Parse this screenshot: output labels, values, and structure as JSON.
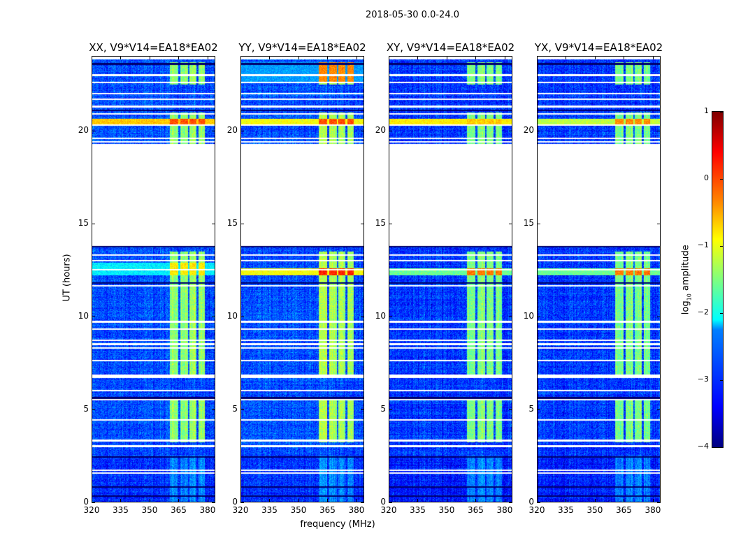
{
  "figure_title": "2018-05-30 0.0-24.0",
  "chart_data": {
    "type": "heatmap",
    "title": "2018-05-30 0.0-24.0",
    "xlabel": "frequency (MHz)",
    "ylabel": "UT (hours)",
    "xlim": [
      320,
      384
    ],
    "ylim": [
      0,
      24
    ],
    "xticks": [
      "320",
      "335",
      "350",
      "365",
      "380"
    ],
    "xtick_values": [
      320,
      335,
      350,
      365,
      380
    ],
    "yticks": [
      "0",
      "5",
      "10",
      "15",
      "20"
    ],
    "ytick_values": [
      0,
      5,
      10,
      15,
      20
    ],
    "data_end_hour": 23.85,
    "gap_hours": [
      13.8,
      19.3
    ],
    "blank_rows_hours": [
      1.55,
      1.7,
      3.0,
      3.3,
      4.4,
      5.5,
      6.0,
      6.7,
      6.8,
      7.6,
      8.3,
      8.5,
      8.7,
      9.3,
      9.7,
      11.65,
      12.5,
      13.0,
      13.3,
      19.4,
      19.6,
      20.3,
      20.9,
      21.3,
      21.7,
      22.0,
      22.6,
      23.0
    ],
    "dark_rows_hours": [
      0.3,
      0.8,
      2.4,
      5.6,
      11.8,
      13.75,
      21.1,
      23.6
    ],
    "rfi_columns_mhz": [
      [
        360.5,
        365
      ],
      [
        366,
        370
      ],
      [
        371,
        374.5
      ],
      [
        375.5,
        379
      ]
    ],
    "rfi_active_hours": [
      [
        3.2,
        5.5
      ],
      [
        6.7,
        13.5
      ],
      [
        19.3,
        21.0
      ],
      [
        22.5,
        23.7
      ]
    ],
    "colorbar": {
      "label_prefix": "log",
      "label_sub": "10",
      "label_suffix": " amplitude",
      "range": [
        -4,
        1
      ],
      "ticks": [
        "1",
        "0",
        "−1",
        "−2",
        "−3",
        "−4"
      ],
      "tick_values": [
        1,
        0,
        -1,
        -2,
        -3,
        -4
      ],
      "colormap": "jet"
    },
    "panels": [
      {
        "title": "XX, V9*V14=EA18*EA02",
        "base_level": -3.0,
        "rfi_level": -1.4,
        "strong_rows": [
          {
            "hours": [
              20.35,
              20.65
            ],
            "level": -0.6,
            "rfi_level": 0.0
          },
          {
            "hours": [
              12.2,
              12.9
            ],
            "level": -2.2,
            "rfi_level": -0.8
          }
        ]
      },
      {
        "title": "YY, V9*V14=EA18*EA02",
        "base_level": -3.0,
        "rfi_level": -1.3,
        "strong_rows": [
          {
            "hours": [
              20.35,
              20.65
            ],
            "level": -0.9,
            "rfi_level": 0.0
          },
          {
            "hours": [
              12.2,
              12.6
            ],
            "level": -0.9,
            "rfi_level": 0.2
          },
          {
            "hours": [
              22.6,
              23.7
            ],
            "level": -2.6,
            "rfi_level": -0.3
          }
        ]
      },
      {
        "title": "XY, V9*V14=EA18*EA02",
        "base_level": -3.1,
        "rfi_level": -1.5,
        "strong_rows": [
          {
            "hours": [
              20.35,
              20.65
            ],
            "level": -0.8,
            "rfi_level": -0.6
          },
          {
            "hours": [
              12.2,
              12.6
            ],
            "level": -1.6,
            "rfi_level": -0.2
          }
        ]
      },
      {
        "title": "YX, V9*V14=EA18*EA02",
        "base_level": -3.1,
        "rfi_level": -1.5,
        "strong_rows": [
          {
            "hours": [
              20.35,
              20.65
            ],
            "level": -1.2,
            "rfi_level": -0.3
          },
          {
            "hours": [
              12.2,
              12.6
            ],
            "level": -1.6,
            "rfi_level": -0.2
          }
        ]
      }
    ]
  }
}
